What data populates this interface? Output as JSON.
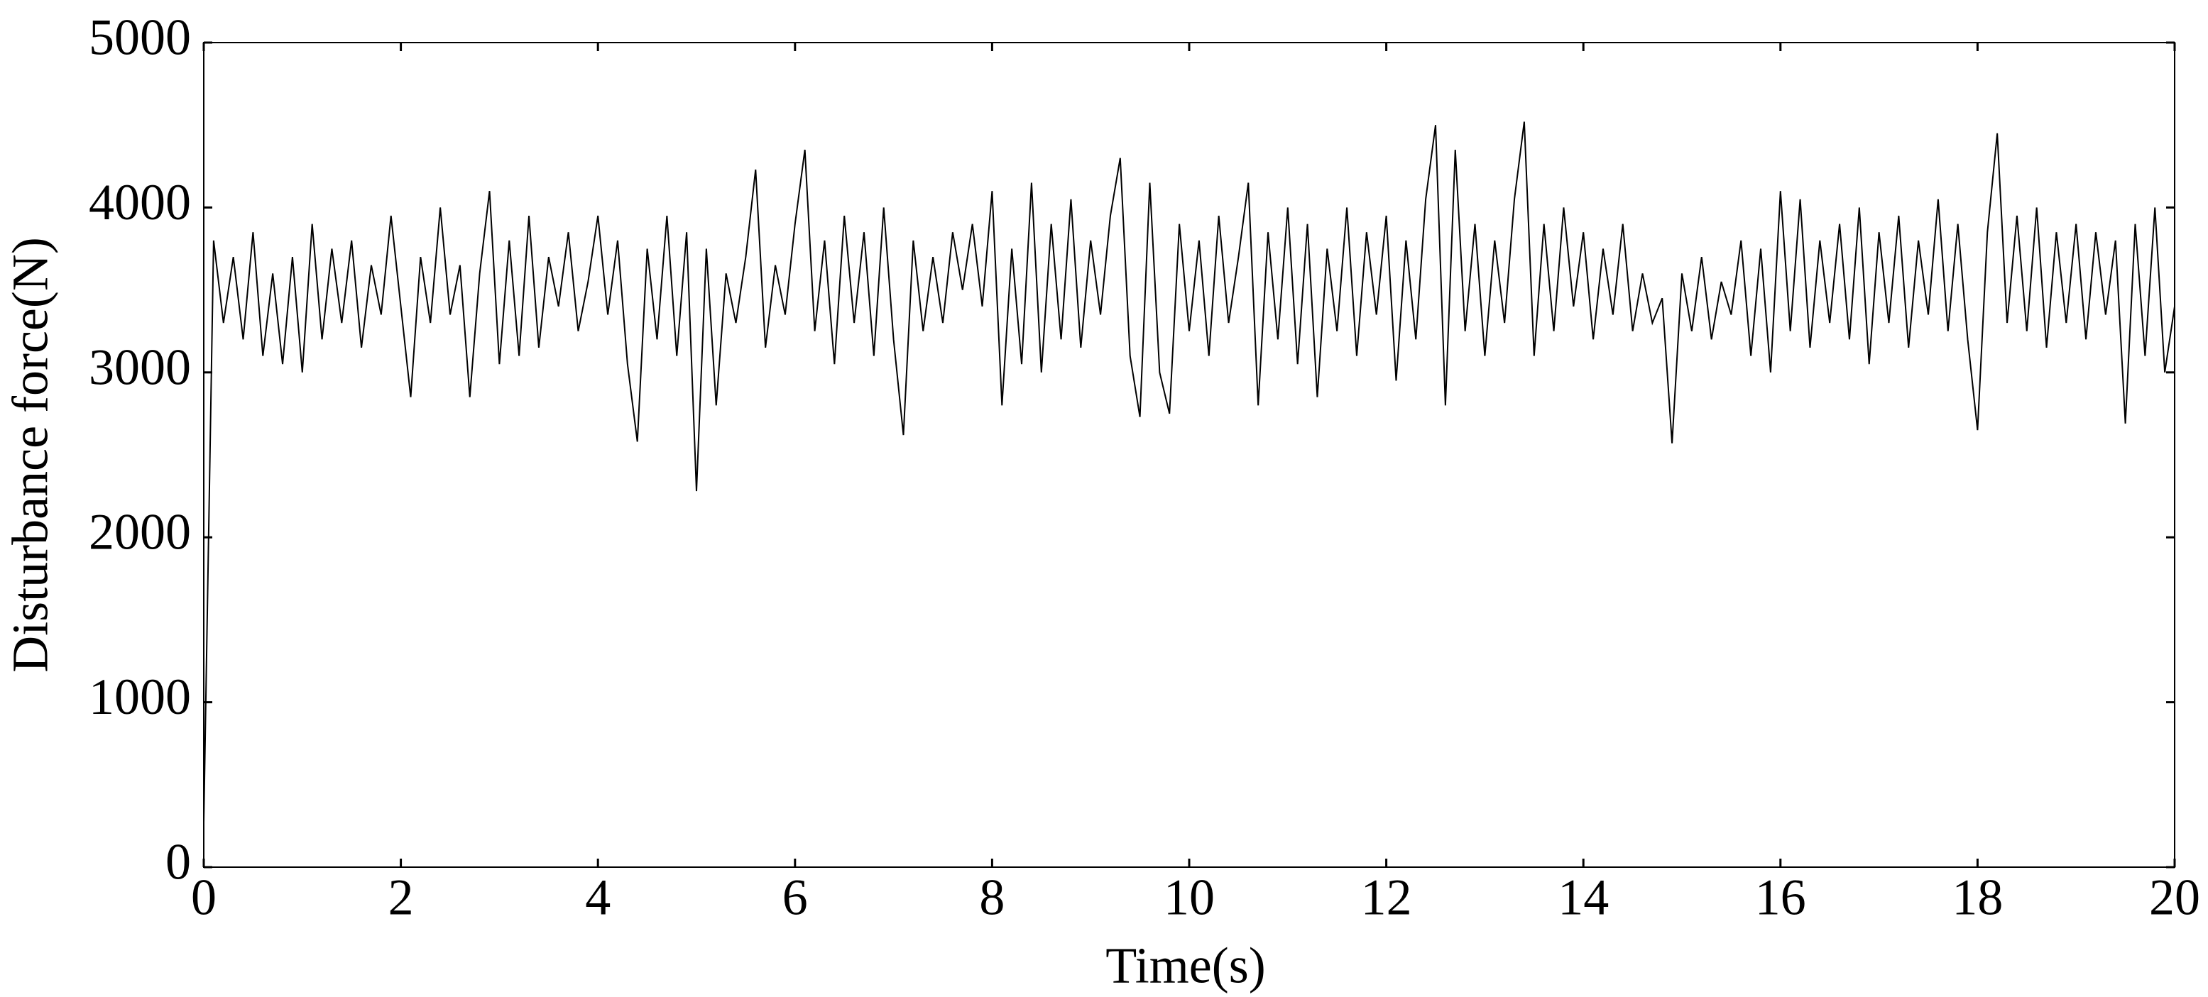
{
  "chart_data": {
    "type": "line",
    "xlabel": "Time(s)",
    "ylabel": "Disturbance force(N)",
    "color": "#000000",
    "xlim": [
      0,
      20
    ],
    "xticks": [
      0,
      2,
      4,
      6,
      8,
      10,
      12,
      14,
      16,
      18,
      20
    ],
    "ylim": [
      0,
      5000
    ],
    "yticks": [
      0,
      1000,
      2000,
      3000,
      4000,
      5000
    ],
    "grid": false,
    "x": [
      0,
      0.1,
      0.2,
      0.3,
      0.4,
      0.5,
      0.6,
      0.7,
      0.8,
      0.9,
      1,
      1.1,
      1.2,
      1.3,
      1.4,
      1.5,
      1.6,
      1.7,
      1.8,
      1.9,
      2,
      2.1,
      2.2,
      2.3,
      2.4,
      2.5,
      2.6,
      2.7,
      2.8,
      2.9,
      3,
      3.1,
      3.2,
      3.3,
      3.4,
      3.5,
      3.6,
      3.7,
      3.8,
      3.9,
      4,
      4.1,
      4.2,
      4.3,
      4.4,
      4.5,
      4.6,
      4.7,
      4.8,
      4.9,
      5,
      5.1,
      5.2,
      5.3,
      5.4,
      5.5,
      5.6,
      5.7,
      5.8,
      5.9,
      6,
      6.1,
      6.2,
      6.3,
      6.4,
      6.5,
      6.6,
      6.7,
      6.8,
      6.9,
      7,
      7.1,
      7.2,
      7.3,
      7.4,
      7.5,
      7.6,
      7.7,
      7.8,
      7.9,
      8,
      8.1,
      8.2,
      8.3,
      8.4,
      8.5,
      8.6,
      8.7,
      8.8,
      8.9,
      9,
      9.1,
      9.2,
      9.3,
      9.4,
      9.5,
      9.6,
      9.7,
      9.8,
      9.9,
      10,
      10.1,
      10.2,
      10.3,
      10.4,
      10.5,
      10.6,
      10.7,
      10.8,
      10.9,
      11,
      11.1,
      11.2,
      11.3,
      11.4,
      11.5,
      11.6,
      11.7,
      11.8,
      11.9,
      12,
      12.1,
      12.2,
      12.3,
      12.4,
      12.5,
      12.6,
      12.7,
      12.8,
      12.9,
      13,
      13.1,
      13.2,
      13.3,
      13.4,
      13.5,
      13.6,
      13.7,
      13.8,
      13.9,
      14,
      14.1,
      14.2,
      14.3,
      14.4,
      14.5,
      14.6,
      14.7,
      14.8,
      14.9,
      15,
      15.1,
      15.2,
      15.3,
      15.4,
      15.5,
      15.6,
      15.7,
      15.8,
      15.9,
      16,
      16.1,
      16.2,
      16.3,
      16.4,
      16.5,
      16.6,
      16.7,
      16.8,
      16.9,
      17,
      17.1,
      17.2,
      17.3,
      17.4,
      17.5,
      17.6,
      17.7,
      17.8,
      17.9,
      18,
      18.1,
      18.2,
      18.3,
      18.4,
      18.5,
      18.6,
      18.7,
      18.8,
      18.9,
      19,
      19.1,
      19.2,
      19.3,
      19.4,
      19.5,
      19.6,
      19.7,
      19.8,
      19.9,
      20
    ],
    "values": [
      270,
      3800,
      3300,
      3700,
      3200,
      3850,
      3100,
      3600,
      3050,
      3700,
      3000,
      3900,
      3200,
      3750,
      3300,
      3800,
      3150,
      3650,
      3350,
      3950,
      3400,
      2850,
      3700,
      3300,
      4000,
      3350,
      3650,
      2850,
      3600,
      4100,
      3050,
      3800,
      3100,
      3950,
      3150,
      3700,
      3400,
      3850,
      3250,
      3550,
      3950,
      3350,
      3800,
      3050,
      2580,
      3750,
      3200,
      3950,
      3100,
      3850,
      2280,
      3750,
      2800,
      3600,
      3300,
      3700,
      4230,
      3150,
      3650,
      3350,
      3900,
      4350,
      3250,
      3800,
      3050,
      3950,
      3300,
      3850,
      3100,
      4000,
      3200,
      2620,
      3800,
      3250,
      3700,
      3300,
      3850,
      3500,
      3900,
      3400,
      4100,
      2800,
      3750,
      3050,
      4150,
      3000,
      3900,
      3200,
      4050,
      3150,
      3800,
      3350,
      3950,
      4300,
      3100,
      2730,
      4150,
      3000,
      2750,
      3900,
      3250,
      3800,
      3100,
      3950,
      3300,
      3700,
      4150,
      2800,
      3850,
      3200,
      4000,
      3050,
      3900,
      2850,
      3750,
      3250,
      4000,
      3100,
      3850,
      3350,
      3950,
      2950,
      3800,
      3200,
      4050,
      4500,
      2800,
      4350,
      3250,
      3900,
      3100,
      3800,
      3300,
      4050,
      4520,
      3100,
      3900,
      3250,
      4000,
      3400,
      3850,
      3200,
      3750,
      3350,
      3900,
      3250,
      3600,
      3300,
      3450,
      2570,
      3600,
      3250,
      3700,
      3200,
      3550,
      3350,
      3800,
      3100,
      3750,
      3000,
      4100,
      3250,
      4050,
      3150,
      3800,
      3300,
      3900,
      3200,
      4000,
      3050,
      3850,
      3300,
      3950,
      3150,
      3800,
      3350,
      4050,
      3250,
      3900,
      3200,
      2650,
      3850,
      4450,
      3300,
      3950,
      3250,
      4000,
      3150,
      3850,
      3300,
      3900,
      3200,
      3850,
      3350,
      3800,
      2690,
      3900,
      3100,
      4000,
      3000,
      3400
    ]
  }
}
